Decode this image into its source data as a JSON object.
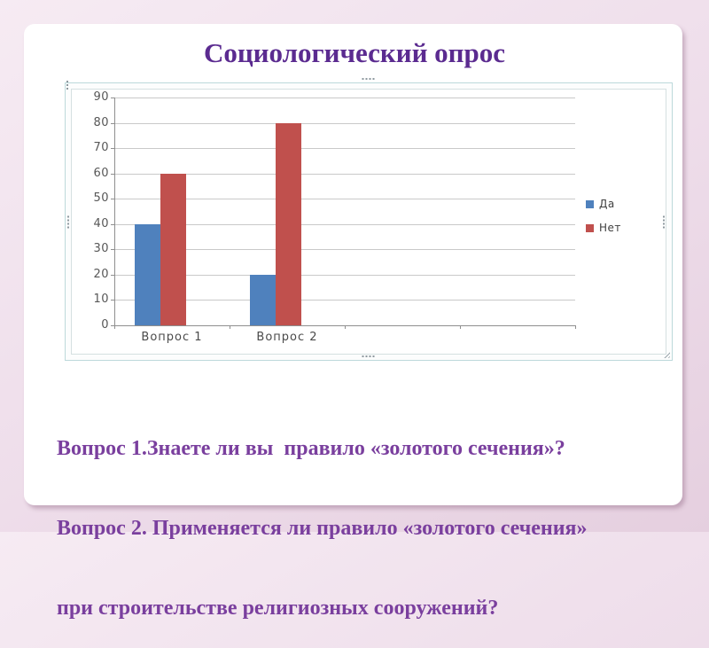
{
  "slide": {
    "title": "Социологический опрос",
    "body_lines": [
      "Вопрос 1.Знаете ли вы  правило «золотого сечения»?",
      "Вопрос 2. Применяется ли правило «золотого сечения»",
      "при строительстве религиозных сооружений?"
    ]
  },
  "chart_data": {
    "type": "bar",
    "title": "",
    "categories": [
      "Вопрос 1",
      "Вопрос 2"
    ],
    "series": [
      {
        "name": "Да",
        "color": "#4f81bd",
        "values": [
          40,
          20
        ]
      },
      {
        "name": "Нет",
        "color": "#c0504d",
        "values": [
          60,
          80
        ]
      }
    ],
    "ylim": [
      0,
      90
    ],
    "yticks": [
      0,
      10,
      20,
      30,
      40,
      50,
      60,
      70,
      80,
      90
    ],
    "grid": true,
    "legend_position": "right",
    "category_slots": 4
  },
  "colors": {
    "title_text": "#5b2b90",
    "body_text": "#7a3f9e",
    "bar_yes": "#4f81bd",
    "bar_no": "#c0504d",
    "gridline": "#c9c9c9",
    "axis": "#8f8f8f",
    "frame_border": "#bdd9db",
    "slide_bg": "#eeddea",
    "card_bg": "#ffffff"
  }
}
